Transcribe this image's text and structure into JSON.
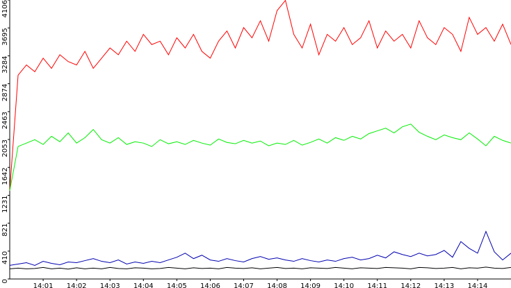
{
  "chart_data": {
    "type": "line",
    "x": [
      0,
      0.25,
      0.5,
      0.75,
      1,
      1.25,
      1.5,
      1.75,
      2,
      2.25,
      2.5,
      2.75,
      3,
      3.25,
      3.5,
      3.75,
      4,
      4.25,
      4.5,
      4.75,
      5,
      5.25,
      5.5,
      5.75,
      6,
      6.25,
      6.5,
      6.75,
      7,
      7.25,
      7.5,
      7.75,
      8,
      8.25,
      8.5,
      8.75,
      9,
      9.25,
      9.5,
      9.75,
      10,
      10.25,
      10.5,
      10.75,
      11,
      11.25,
      11.5,
      11.75,
      12,
      12.25,
      12.5,
      12.75,
      13,
      13.25,
      13.5,
      13.75,
      14,
      14.25,
      14.5,
      14.75,
      15
    ],
    "series": [
      {
        "color": "#ff0000",
        "values": [
          1300,
          3000,
          3150,
          3050,
          3250,
          3100,
          3300,
          3200,
          3150,
          3350,
          3100,
          3250,
          3400,
          3300,
          3500,
          3350,
          3600,
          3450,
          3500,
          3300,
          3550,
          3400,
          3600,
          3350,
          3250,
          3500,
          3650,
          3400,
          3700,
          3550,
          3800,
          3500,
          3950,
          4100,
          3600,
          3400,
          3750,
          3300,
          3600,
          3500,
          3700,
          3450,
          3550,
          3800,
          3400,
          3650,
          3500,
          3600,
          3400,
          3800,
          3550,
          3450,
          3700,
          3600,
          3350,
          3850,
          3600,
          3700,
          3500,
          3750,
          3450
        ]
      },
      {
        "color": "#00ee00",
        "values": [
          1300,
          1950,
          2000,
          2050,
          1980,
          2100,
          2020,
          2150,
          2000,
          2080,
          2200,
          2050,
          2000,
          2080,
          1980,
          2020,
          2000,
          1950,
          2050,
          1990,
          2020,
          1980,
          2040,
          2000,
          1970,
          2060,
          2010,
          1990,
          2040,
          2000,
          2030,
          1960,
          2000,
          1980,
          2040,
          1970,
          2010,
          2060,
          2000,
          2080,
          2040,
          2100,
          2060,
          2140,
          2180,
          2220,
          2150,
          2240,
          2280,
          2160,
          2100,
          2050,
          2120,
          2080,
          2050,
          2150,
          2060,
          1960,
          2100,
          2040,
          2000
        ]
      },
      {
        "color": "#0000b0",
        "values": [
          200,
          220,
          240,
          200,
          260,
          230,
          210,
          250,
          240,
          270,
          300,
          260,
          240,
          280,
          220,
          250,
          230,
          260,
          240,
          280,
          320,
          380,
          300,
          350,
          280,
          260,
          300,
          270,
          250,
          300,
          330,
          290,
          310,
          280,
          260,
          300,
          270,
          250,
          280,
          260,
          300,
          320,
          280,
          300,
          350,
          310,
          400,
          360,
          330,
          380,
          340,
          360,
          420,
          320,
          550,
          450,
          380,
          700,
          400,
          280,
          380
        ]
      },
      {
        "color": "#000000",
        "values": [
          150,
          160,
          150,
          155,
          170,
          150,
          160,
          145,
          165,
          150,
          160,
          150,
          170,
          155,
          150,
          165,
          160,
          150,
          155,
          170,
          160,
          150,
          165,
          155,
          160,
          150,
          170,
          160,
          155,
          165,
          150,
          160,
          170,
          155,
          160,
          150,
          165,
          160,
          155,
          170,
          160,
          150,
          165,
          160,
          155,
          170,
          165,
          160,
          150,
          170,
          165,
          155,
          160,
          170,
          150,
          165,
          160,
          175,
          160,
          155,
          170
        ]
      }
    ],
    "xlim": [
      0,
      15
    ],
    "xticks": [
      {
        "value": 1,
        "label": "14:01"
      },
      {
        "value": 2,
        "label": "14:02"
      },
      {
        "value": 3,
        "label": "14:03"
      },
      {
        "value": 4,
        "label": "14:04"
      },
      {
        "value": 5,
        "label": "14:05"
      },
      {
        "value": 6,
        "label": "14:06"
      },
      {
        "value": 7,
        "label": "14:07"
      },
      {
        "value": 8,
        "label": "14:08"
      },
      {
        "value": 9,
        "label": "14:09"
      },
      {
        "value": 10,
        "label": "14:10"
      },
      {
        "value": 11,
        "label": "14:11"
      },
      {
        "value": 12,
        "label": "14:12"
      },
      {
        "value": 13,
        "label": "14:13"
      },
      {
        "value": 14,
        "label": "14:14"
      }
    ],
    "ylim": [
      0,
      4106
    ],
    "yticks": [
      0,
      410,
      821,
      1231,
      1642,
      2053,
      2463,
      2874,
      3284,
      3695,
      4106
    ]
  }
}
